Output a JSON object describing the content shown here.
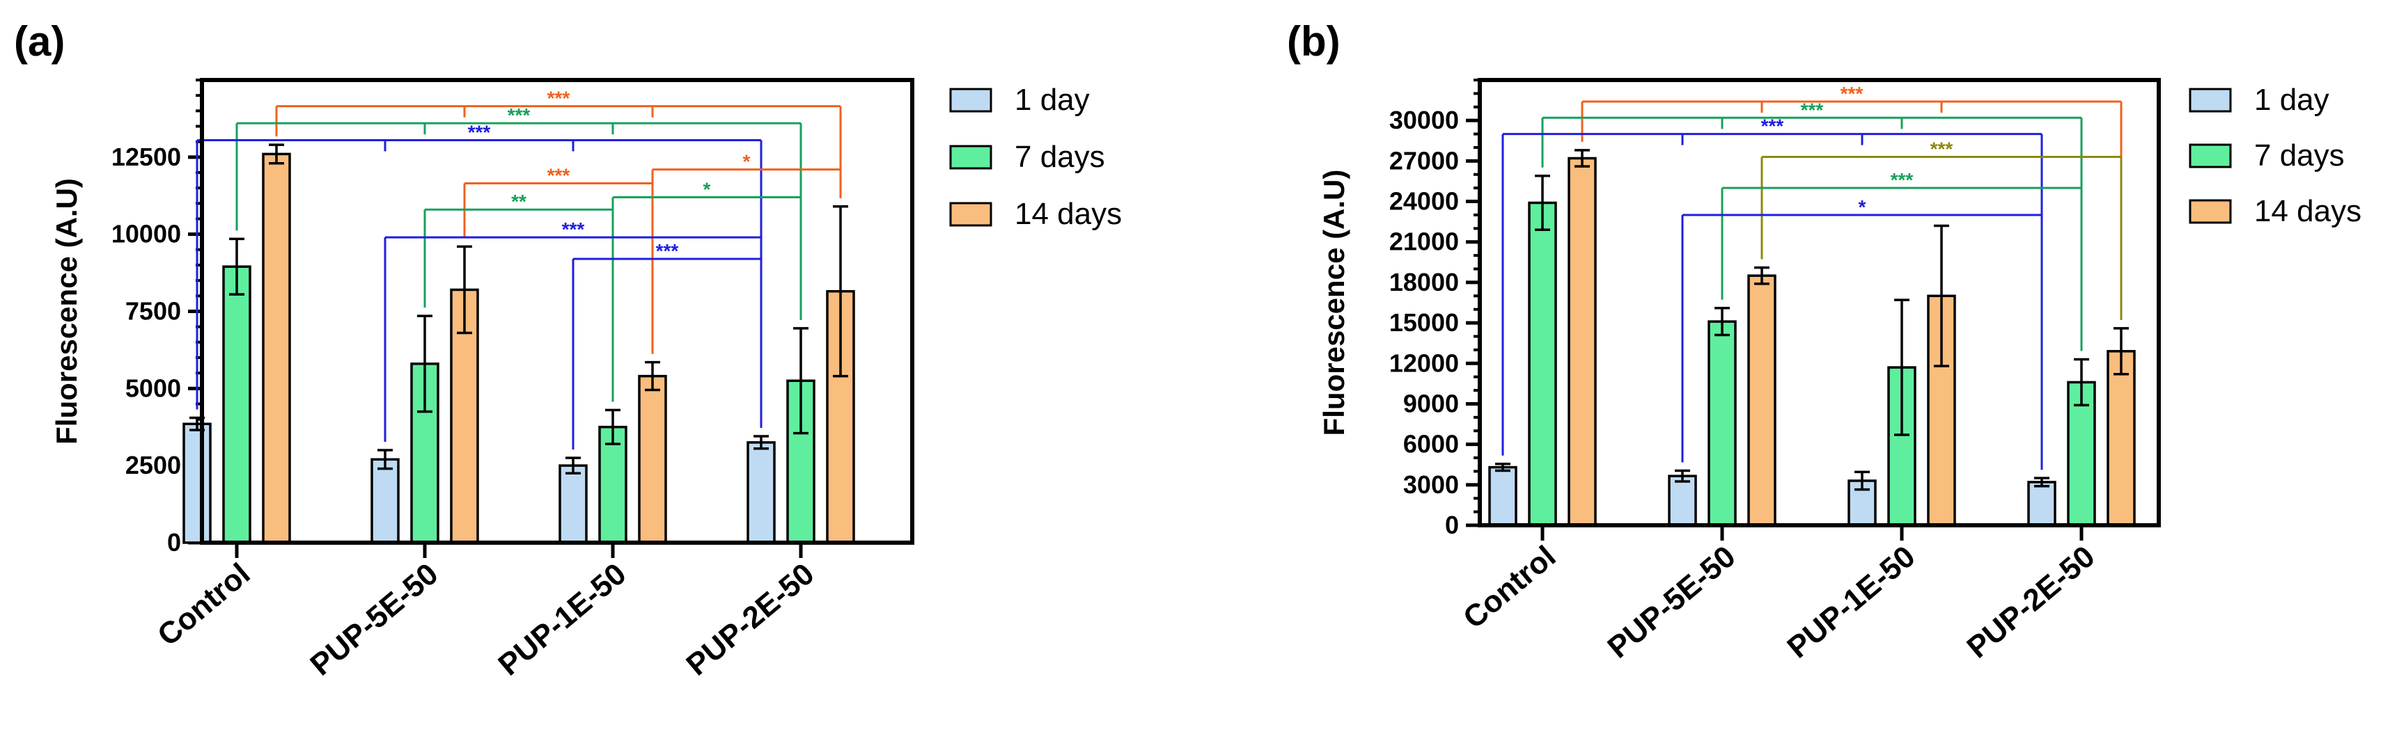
{
  "chart_data": [
    {
      "type": "bar",
      "panel": "(a)",
      "ylabel": "Fluorescence (A.U)",
      "xlabel": "",
      "categories": [
        "Control",
        "PUP-5E-50",
        "PUP-1E-50",
        "PUP-2E-50"
      ],
      "ylim": [
        0,
        15000
      ],
      "yticks": [
        0,
        2500,
        5000,
        7500,
        10000,
        12500
      ],
      "ytick_labels": [
        "0",
        "2500",
        "5000",
        "7500",
        "10000",
        "12500"
      ],
      "minor_step": 500,
      "series": [
        {
          "name": "1 day",
          "color": "#BFDBF3",
          "values": [
            3850,
            2700,
            2500,
            3250
          ],
          "errors": [
            200,
            300,
            250,
            200
          ]
        },
        {
          "name": "7 days",
          "color": "#5FEE9E",
          "values": [
            8950,
            5800,
            3750,
            5250
          ],
          "errors": [
            900,
            1550,
            550,
            1700
          ]
        },
        {
          "name": "14 days",
          "color": "#F9BD7E",
          "values": [
            12600,
            8200,
            5400,
            8150
          ],
          "errors": [
            300,
            1400,
            450,
            2750
          ]
        }
      ],
      "legend_position": "right",
      "significance": [
        {
          "from": [
            0,
            2
          ],
          "to": [
            [
              1,
              2
            ],
            [
              2,
              2
            ],
            [
              3,
              2
            ]
          ],
          "y": 14150,
          "label": "***",
          "color": "#F0611E"
        },
        {
          "from": [
            0,
            1
          ],
          "to": [
            [
              1,
              1
            ],
            [
              2,
              1
            ],
            [
              3,
              1
            ]
          ],
          "y": 13600,
          "label": "***",
          "color": "#17A15A"
        },
        {
          "from": [
            0,
            0
          ],
          "to": [
            [
              1,
              0
            ],
            [
              2,
              0
            ],
            [
              3,
              0
            ]
          ],
          "y": 13050,
          "label": "***",
          "color": "#1F1FE0"
        },
        {
          "from": [
            1,
            2
          ],
          "to": [
            [
              2,
              2
            ]
          ],
          "y": 11650,
          "label": "***",
          "color": "#F0611E"
        },
        {
          "from": [
            2,
            2
          ],
          "to": [
            [
              3,
              2
            ]
          ],
          "y": 12100,
          "label": "*",
          "color": "#F0611E"
        },
        {
          "from": [
            1,
            1
          ],
          "to": [
            [
              2,
              1
            ]
          ],
          "y": 10800,
          "label": "**",
          "color": "#17A15A"
        },
        {
          "from": [
            2,
            1
          ],
          "to": [
            [
              3,
              1
            ]
          ],
          "y": 11200,
          "label": "*",
          "color": "#17A15A"
        },
        {
          "from": [
            1,
            0
          ],
          "to": [
            [
              3,
              0
            ]
          ],
          "y": 9900,
          "label": "***",
          "color": "#1F1FE0"
        },
        {
          "from": [
            2,
            0
          ],
          "to": [
            [
              3,
              0
            ]
          ],
          "y": 9200,
          "label": "***",
          "color": "#1F1FE0"
        }
      ]
    },
    {
      "type": "bar",
      "panel": "(b)",
      "ylabel": "Fluorescence (A.U)",
      "xlabel": "",
      "categories": [
        "Control",
        "PUP-5E-50",
        "PUP-1E-50",
        "PUP-2E-50"
      ],
      "ylim": [
        0,
        33000
      ],
      "yticks": [
        0,
        3000,
        6000,
        9000,
        12000,
        15000,
        18000,
        21000,
        24000,
        27000,
        30000
      ],
      "ytick_labels": [
        "0",
        "3000",
        "6000",
        "9000",
        "12000",
        "15000",
        "18000",
        "21000",
        "24000",
        "27000",
        "30000"
      ],
      "minor_step": 1000,
      "series": [
        {
          "name": "1 day",
          "color": "#BFDBF3",
          "values": [
            4300,
            3650,
            3300,
            3200
          ],
          "errors": [
            250,
            400,
            650,
            300
          ]
        },
        {
          "name": "7 days",
          "color": "#5FEE9E",
          "values": [
            23900,
            15100,
            11700,
            10600
          ],
          "errors": [
            2000,
            1000,
            5000,
            1700
          ]
        },
        {
          "name": "14 days",
          "color": "#F9BD7E",
          "values": [
            27200,
            18500,
            17000,
            12900
          ],
          "errors": [
            600,
            600,
            5200,
            1700
          ]
        }
      ],
      "legend_position": "right",
      "significance": [
        {
          "from": [
            0,
            2
          ],
          "to": [
            [
              1,
              2
            ],
            [
              2,
              2
            ],
            [
              3,
              2
            ]
          ],
          "y": 31400,
          "label": "***",
          "color": "#F0611E"
        },
        {
          "from": [
            0,
            1
          ],
          "to": [
            [
              1,
              1
            ],
            [
              2,
              1
            ],
            [
              3,
              1
            ]
          ],
          "y": 30200,
          "label": "***",
          "color": "#17A15A"
        },
        {
          "from": [
            0,
            0
          ],
          "to": [
            [
              1,
              0
            ],
            [
              2,
              0
            ],
            [
              3,
              0
            ]
          ],
          "y": 29000,
          "label": "***",
          "color": "#1F1FE0"
        },
        {
          "from": [
            1,
            2
          ],
          "to": [
            [
              3,
              2
            ]
          ],
          "y": 27300,
          "label": "***",
          "color": "#8C8A0E"
        },
        {
          "from": [
            1,
            1
          ],
          "to": [
            [
              3,
              1
            ]
          ],
          "y": 25000,
          "label": "***",
          "color": "#17A15A"
        },
        {
          "from": [
            1,
            0
          ],
          "to": [
            [
              3,
              0
            ]
          ],
          "y": 23000,
          "label": "*",
          "color": "#1F1FE0"
        }
      ]
    }
  ]
}
